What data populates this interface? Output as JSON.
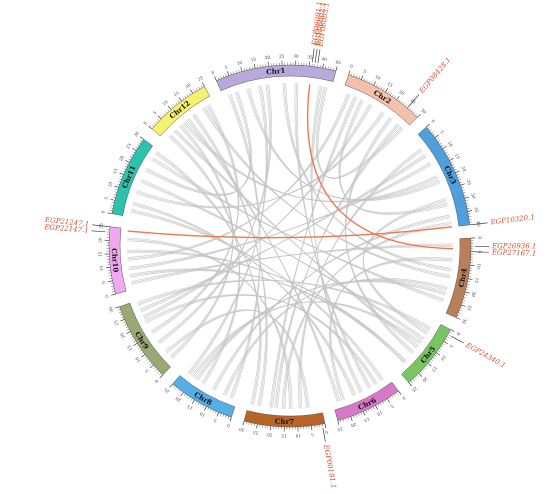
{
  "diagram": {
    "type": "circos-synteny",
    "chromosomes": [
      {
        "name": "Chr1",
        "color": "#b9a8da",
        "max": 45
      },
      {
        "name": "Chr2",
        "color": "#f5c1aa",
        "max": 30
      },
      {
        "name": "Chr3",
        "color": "#4f9fdc",
        "max": 40
      },
      {
        "name": "Chr4",
        "color": "#b7805a",
        "max": 30
      },
      {
        "name": "Chr5",
        "color": "#78c562",
        "max": 25
      },
      {
        "name": "Chr6",
        "color": "#d878c9",
        "max": 25
      },
      {
        "name": "Chr7",
        "color": "#b86428",
        "max": 30
      },
      {
        "name": "Chr8",
        "color": "#55aee6",
        "max": 25
      },
      {
        "name": "Chr9",
        "color": "#98a974",
        "max": 30
      },
      {
        "name": "Chr10",
        "color": "#f0a8f0",
        "max": 25
      },
      {
        "name": "Chr11",
        "color": "#2cc2ac",
        "max": 30
      },
      {
        "name": "Chr12",
        "color": "#f5f06e",
        "max": 25
      }
    ],
    "genes": [
      {
        "id": "EGP06001.1",
        "chr": "Chr1",
        "pos": 36
      },
      {
        "id": "EGP06002.1",
        "chr": "Chr1",
        "pos": 37
      },
      {
        "id": "EGP06003.1",
        "chr": "Chr1",
        "pos": 38
      },
      {
        "id": "EGP08428.1",
        "chr": "Chr2",
        "pos": 25
      },
      {
        "id": "EGP10320.1",
        "chr": "Chr3",
        "pos": 40
      },
      {
        "id": "EGP26936.1",
        "chr": "Chr4",
        "pos": 3
      },
      {
        "id": "EGP27167.1",
        "chr": "Chr4",
        "pos": 5
      },
      {
        "id": "EGP24340.1",
        "chr": "Chr5",
        "pos": 2
      },
      {
        "id": "EGP00181.1",
        "chr": "Chr7",
        "pos": 1
      },
      {
        "id": "EGP22147.1",
        "chr": "Chr10",
        "pos": 23
      },
      {
        "id": "EGP21247.1",
        "chr": "Chr10",
        "pos": 25
      }
    ],
    "highlight_links": [
      {
        "from": [
          "Chr1",
          36
        ],
        "to": [
          "Chr4",
          4
        ]
      },
      {
        "from": [
          "Chr10",
          24
        ],
        "to": [
          "Chr3",
          40
        ]
      }
    ],
    "background_links": [
      [
        "Chr1",
        10,
        "Chr3",
        20
      ],
      [
        "Chr1",
        25,
        "Chr4",
        12
      ],
      [
        "Chr1",
        5,
        "Chr11",
        20
      ],
      [
        "Chr1",
        18,
        "Chr9",
        10
      ],
      [
        "Chr1",
        30,
        "Chr6",
        8
      ],
      [
        "Chr2",
        5,
        "Chr7",
        20
      ],
      [
        "Chr2",
        12,
        "Chr9",
        22
      ],
      [
        "Chr2",
        18,
        "Chr11",
        10
      ],
      [
        "Chr2",
        22,
        "Chr5",
        15
      ],
      [
        "Chr2",
        8,
        "Chr3",
        30
      ],
      [
        "Chr3",
        5,
        "Chr7",
        8
      ],
      [
        "Chr3",
        12,
        "Chr10",
        8
      ],
      [
        "Chr3",
        28,
        "Chr5",
        5
      ],
      [
        "Chr3",
        35,
        "Chr8",
        10
      ],
      [
        "Chr3",
        18,
        "Chr12",
        10
      ],
      [
        "Chr4",
        20,
        "Chr8",
        5
      ],
      [
        "Chr4",
        25,
        "Chr11",
        25
      ],
      [
        "Chr4",
        8,
        "Chr6",
        20
      ],
      [
        "Chr4",
        15,
        "Chr12",
        20
      ],
      [
        "Chr5",
        10,
        "Chr8",
        20
      ],
      [
        "Chr5",
        20,
        "Chr10",
        15
      ],
      [
        "Chr5",
        12,
        "Chr12",
        5
      ],
      [
        "Chr6",
        5,
        "Chr9",
        20
      ],
      [
        "Chr6",
        15,
        "Chr11",
        5
      ],
      [
        "Chr6",
        12,
        "Chr1",
        40
      ],
      [
        "Chr7",
        12,
        "Chr10",
        20
      ],
      [
        "Chr7",
        25,
        "Chr12",
        15
      ],
      [
        "Chr7",
        5,
        "Chr9",
        5
      ],
      [
        "Chr7",
        18,
        "Chr2",
        26
      ],
      [
        "Chr8",
        15,
        "Chr12",
        2
      ],
      [
        "Chr8",
        22,
        "Chr1",
        15
      ],
      [
        "Chr9",
        15,
        "Chr12",
        22
      ],
      [
        "Chr9",
        25,
        "Chr3",
        8
      ],
      [
        "Chr10",
        5,
        "Chr5",
        20
      ],
      [
        "Chr10",
        12,
        "Chr2",
        2
      ],
      [
        "Chr11",
        15,
        "Chr5",
        8
      ],
      [
        "Chr11",
        28,
        "Chr7",
        28
      ],
      [
        "Chr12",
        12,
        "Chr6",
        22
      ],
      [
        "Chr1",
        2,
        "Chr8",
        2
      ],
      [
        "Chr4",
        2,
        "Chr10",
        2
      ],
      [
        "Chr6",
        2,
        "Chr11",
        2
      ],
      [
        "Chr9",
        2,
        "Chr12",
        8
      ],
      [
        "Chr1",
        42,
        "Chr2",
        28
      ],
      [
        "Chr8",
        18,
        "Chr4",
        22
      ],
      [
        "Chr5",
        3,
        "Chr9",
        28
      ],
      [
        "Chr3",
        38,
        "Chr7",
        15
      ]
    ]
  }
}
